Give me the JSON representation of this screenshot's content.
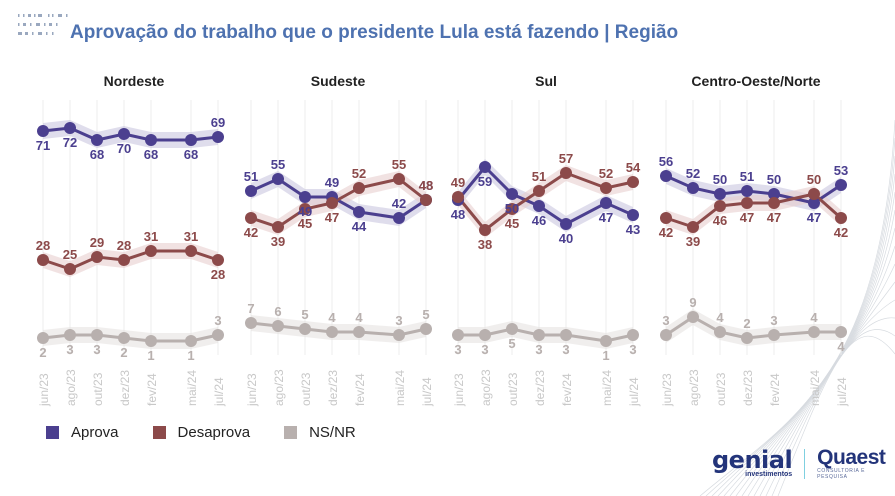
{
  "header": {
    "title": "Aprovação do trabalho que o presidente Lula está fazendo | Região"
  },
  "legend": [
    {
      "label": "Aprova",
      "color": "#4b3f8f"
    },
    {
      "label": "Desaprova",
      "color": "#8c4a4a"
    },
    {
      "label": "NS/NR",
      "color": "#b8b0ae"
    }
  ],
  "logos": {
    "genial": "genial",
    "genial_sub": "investimentos",
    "quaest": "Quaest",
    "quaest_sub": "CONSULTORIA E PESQUISA"
  },
  "chart_data": {
    "type": "line",
    "x": [
      "jun/23",
      "ago/23",
      "out/23",
      "dez/23",
      "fev/24",
      "mai/24",
      "jul/24"
    ],
    "ylabel": "",
    "xlabel": "",
    "ylim": [
      0,
      80
    ],
    "grid": "vertical",
    "legend_position": "bottom-left",
    "panels": [
      {
        "title": "Nordeste",
        "series": [
          {
            "name": "Aprova",
            "values": [
              71,
              72,
              68,
              70,
              68,
              68,
              69
            ]
          },
          {
            "name": "Desaprova",
            "values": [
              28,
              25,
              29,
              28,
              31,
              31,
              28
            ]
          },
          {
            "name": "NS/NR",
            "values": [
              2,
              3,
              3,
              2,
              1,
              1,
              3
            ]
          }
        ]
      },
      {
        "title": "Sudeste",
        "series": [
          {
            "name": "Aprova",
            "values": [
              51,
              55,
              49,
              49,
              44,
              42,
              48
            ]
          },
          {
            "name": "Desaprova",
            "values": [
              42,
              39,
              45,
              47,
              52,
              55,
              48
            ]
          },
          {
            "name": "NS/NR",
            "values": [
              7,
              6,
              5,
              4,
              4,
              3,
              5
            ]
          }
        ]
      },
      {
        "title": "Sul",
        "series": [
          {
            "name": "Aprova",
            "values": [
              48,
              59,
              50,
              46,
              40,
              47,
              43
            ]
          },
          {
            "name": "Desaprova",
            "values": [
              49,
              38,
              45,
              51,
              57,
              52,
              54
            ]
          },
          {
            "name": "NS/NR",
            "values": [
              3,
              3,
              5,
              3,
              3,
              1,
              3
            ]
          }
        ]
      },
      {
        "title": "Centro-Oeste/Norte",
        "series": [
          {
            "name": "Aprova",
            "values": [
              56,
              52,
              50,
              51,
              50,
              47,
              53
            ]
          },
          {
            "name": "Desaprova",
            "values": [
              42,
              39,
              46,
              47,
              47,
              50,
              42
            ]
          },
          {
            "name": "NS/NR",
            "values": [
              3,
              9,
              4,
              2,
              3,
              4,
              4
            ]
          }
        ]
      }
    ]
  }
}
